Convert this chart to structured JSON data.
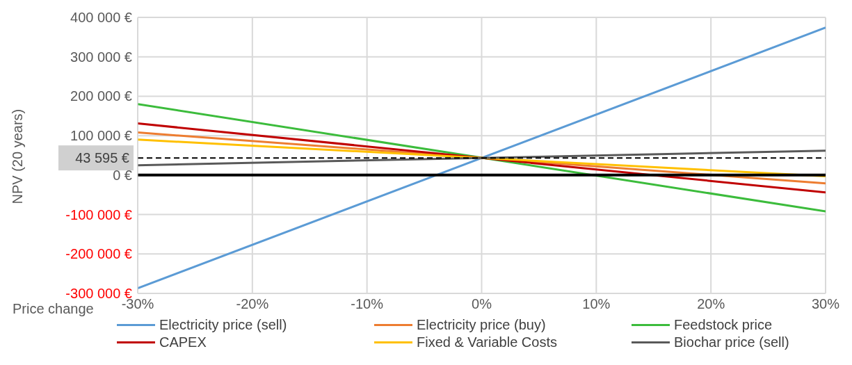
{
  "chart_data": {
    "type": "line",
    "xlabel": "Price change",
    "ylabel": "NPV (20 years)",
    "x": [
      -30,
      30
    ],
    "series": [
      {
        "name": "Electricity price (sell)",
        "color": "#5b9bd5",
        "values": [
          -287000,
          374000
        ]
      },
      {
        "name": "Electricity price (buy)",
        "color": "#ed7d31",
        "values": [
          108000,
          -21000
        ]
      },
      {
        "name": "Feedstock price",
        "color": "#3cbc3c",
        "values": [
          180000,
          -92000
        ]
      },
      {
        "name": "CAPEX",
        "color": "#c00000",
        "values": [
          131000,
          -44000
        ]
      },
      {
        "name": "Fixed & Variable Costs",
        "color": "#ffc000",
        "values": [
          90000,
          -3000
        ]
      },
      {
        "name": "Biochar price (sell)",
        "color": "#595959",
        "values": [
          25000,
          62000
        ]
      }
    ],
    "xlim": [
      -30,
      30
    ],
    "xticks": [
      {
        "value": -30,
        "label": "-30%"
      },
      {
        "value": -20,
        "label": "-20%"
      },
      {
        "value": -10,
        "label": "-10%"
      },
      {
        "value": 0,
        "label": "0%"
      },
      {
        "value": 10,
        "label": "10%"
      },
      {
        "value": 20,
        "label": "20%"
      },
      {
        "value": 30,
        "label": "30%"
      }
    ],
    "ylim": [
      -300000,
      400000
    ],
    "yticks": [
      {
        "value": -300000,
        "label": "-300 000 €"
      },
      {
        "value": -200000,
        "label": "-200 000 €"
      },
      {
        "value": -100000,
        "label": "-100 000 €"
      },
      {
        "value": 0,
        "label": "0 €"
      },
      {
        "value": 100000,
        "label": "100 000 €"
      },
      {
        "value": 200000,
        "label": "200 000 €"
      },
      {
        "value": 300000,
        "label": "300 000 €"
      },
      {
        "value": 400000,
        "label": "400 000 €"
      }
    ],
    "ref_lines": [
      {
        "axis": "y",
        "value": 0,
        "color": "#000000",
        "line_style": "solid"
      },
      {
        "axis": "y",
        "value": 43595,
        "label": "43 595 €",
        "color": "#000000",
        "line_style": "dashed"
      }
    ],
    "grid": true,
    "legend": "bottom",
    "marker": "none",
    "line_style": "solid"
  }
}
